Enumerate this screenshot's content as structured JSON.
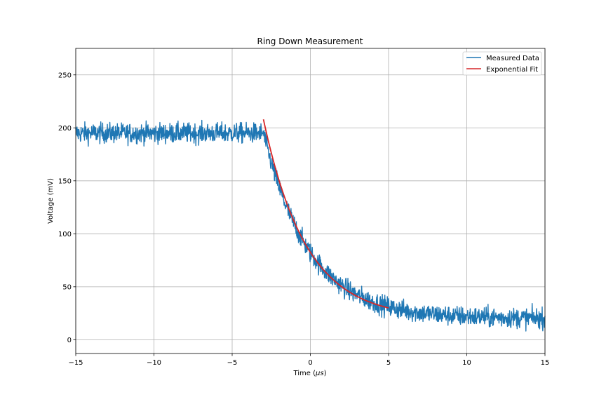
{
  "chart_data": {
    "type": "line",
    "title": "Ring Down Measurement",
    "xlabel_prefix": "Time (",
    "xlabel_symbol": "μs",
    "xlabel_suffix": ")",
    "ylabel": "Voltage (mV)",
    "xlim": [
      -15,
      15
    ],
    "ylim": [
      -13,
      275
    ],
    "xticks": [
      -15,
      -10,
      -5,
      0,
      5,
      10,
      15
    ],
    "yticks": [
      0,
      50,
      100,
      150,
      200,
      250
    ],
    "xtick_labels": [
      "−15",
      "−10",
      "−5",
      "0",
      "5",
      "10",
      "15"
    ],
    "ytick_labels": [
      "0",
      "50",
      "100",
      "150",
      "200",
      "250"
    ],
    "grid": true,
    "legend_position": "upper-right",
    "series": [
      {
        "name": "Measured Data",
        "color": "#1f77b4",
        "kind": "noisy",
        "description_of_shape": "flat ~195 mV until -3 us, exponential decay to ~20 mV, noise approx ±15 mV",
        "baseline_high_mV": 195,
        "baseline_low_mV": 20,
        "decay_start_us": -3,
        "time_constant_us": 2.9,
        "noise_amplitude_mV": 15
      },
      {
        "name": "Exponential Fit",
        "color": "#d62728",
        "kind": "smooth",
        "x_start_us": -3,
        "x_end_us": 5,
        "y_at_start_mV": 208,
        "y_at_end_mV": 30
      }
    ]
  }
}
